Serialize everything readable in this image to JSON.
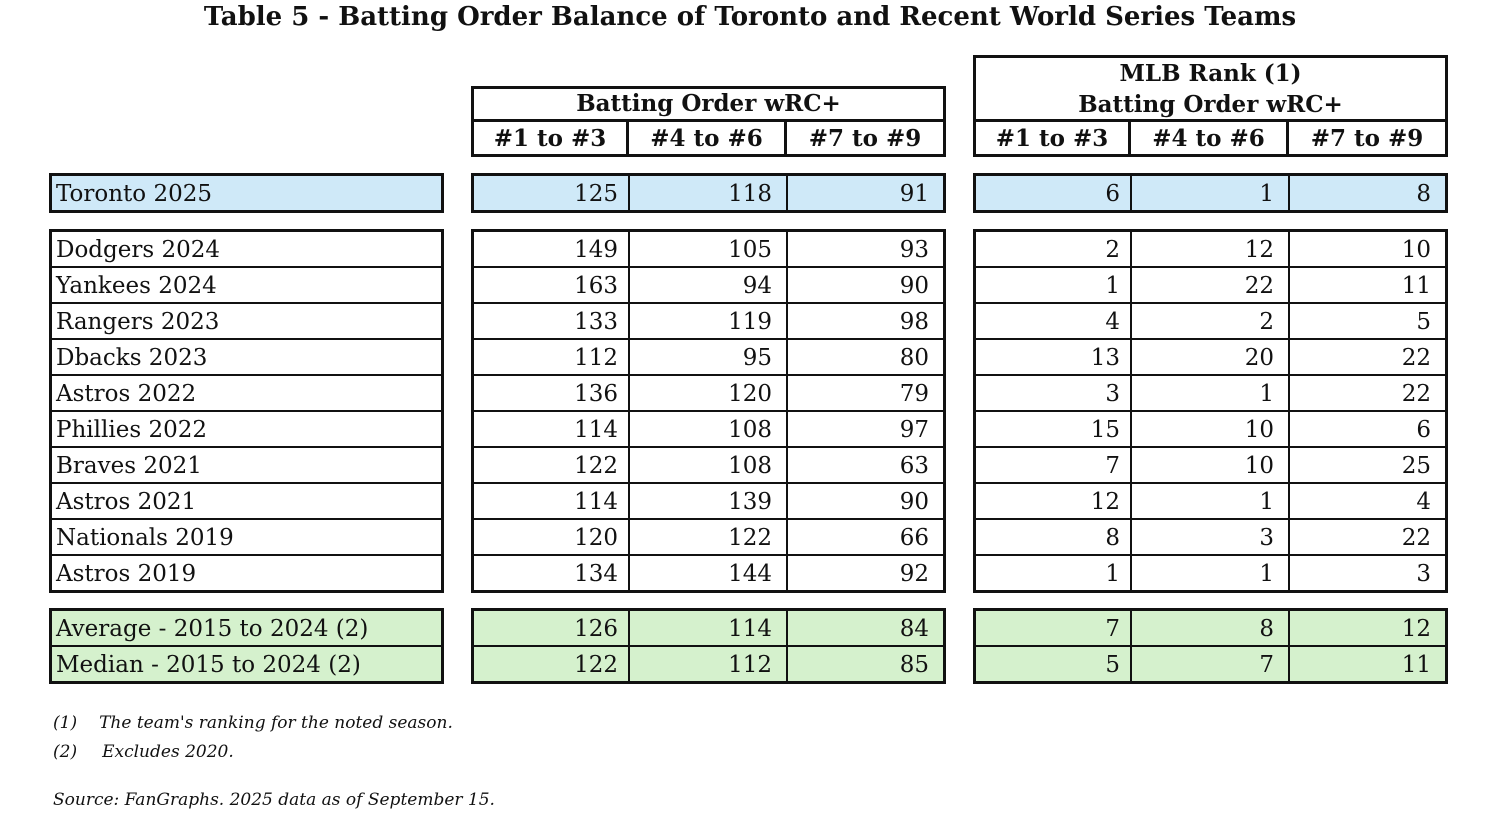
{
  "title": "Table 5 - Batting Order Balance  of Toronto and Recent World Series Teams",
  "headers": {
    "wrc_group": "Batting Order wRC+",
    "rank_group_line1": "MLB Rank (1)",
    "rank_group_line2": "Batting Order wRC+",
    "columns": [
      "#1 to #3",
      "#4 to #6",
      "#7 to #9"
    ]
  },
  "colors": {
    "highlight_blue": "#cfe9f8",
    "highlight_green": "#d5f1cd"
  },
  "toronto": {
    "team": "Toronto 2025",
    "wrc": [
      "125",
      "118",
      "91"
    ],
    "rank": [
      "6",
      "1",
      "8"
    ]
  },
  "teams": [
    {
      "team": "Dodgers 2024",
      "wrc": [
        "149",
        "105",
        "93"
      ],
      "rank": [
        "2",
        "12",
        "10"
      ]
    },
    {
      "team": "Yankees 2024",
      "wrc": [
        "163",
        "94",
        "90"
      ],
      "rank": [
        "1",
        "22",
        "11"
      ]
    },
    {
      "team": "Rangers 2023",
      "wrc": [
        "133",
        "119",
        "98"
      ],
      "rank": [
        "4",
        "2",
        "5"
      ]
    },
    {
      "team": "Dbacks 2023",
      "wrc": [
        "112",
        "95",
        "80"
      ],
      "rank": [
        "13",
        "20",
        "22"
      ]
    },
    {
      "team": "Astros 2022",
      "wrc": [
        "136",
        "120",
        "79"
      ],
      "rank": [
        "3",
        "1",
        "22"
      ]
    },
    {
      "team": "Phillies 2022",
      "wrc": [
        "114",
        "108",
        "97"
      ],
      "rank": [
        "15",
        "10",
        "6"
      ]
    },
    {
      "team": "Braves 2021",
      "wrc": [
        "122",
        "108",
        "63"
      ],
      "rank": [
        "7",
        "10",
        "25"
      ]
    },
    {
      "team": "Astros 2021",
      "wrc": [
        "114",
        "139",
        "90"
      ],
      "rank": [
        "12",
        "1",
        "4"
      ]
    },
    {
      "team": "Nationals 2019",
      "wrc": [
        "120",
        "122",
        "66"
      ],
      "rank": [
        "8",
        "3",
        "22"
      ]
    },
    {
      "team": "Astros 2019",
      "wrc": [
        "134",
        "144",
        "92"
      ],
      "rank": [
        "1",
        "1",
        "3"
      ]
    }
  ],
  "summary": [
    {
      "team": "Average - 2015 to 2024 (2)",
      "wrc": [
        "126",
        "114",
        "84"
      ],
      "rank": [
        "7",
        "8",
        "12"
      ]
    },
    {
      "team": "Median - 2015 to 2024 (2)",
      "wrc": [
        "122",
        "112",
        "85"
      ],
      "rank": [
        "5",
        "7",
        "11"
      ]
    }
  ],
  "footnotes": [
    {
      "marker": "(1)",
      "text": "The team's ranking for the noted season."
    },
    {
      "marker": "(2)",
      "text": "Excludes 2020."
    }
  ],
  "source": "Source: FanGraphs. 2025 data as of September 15."
}
